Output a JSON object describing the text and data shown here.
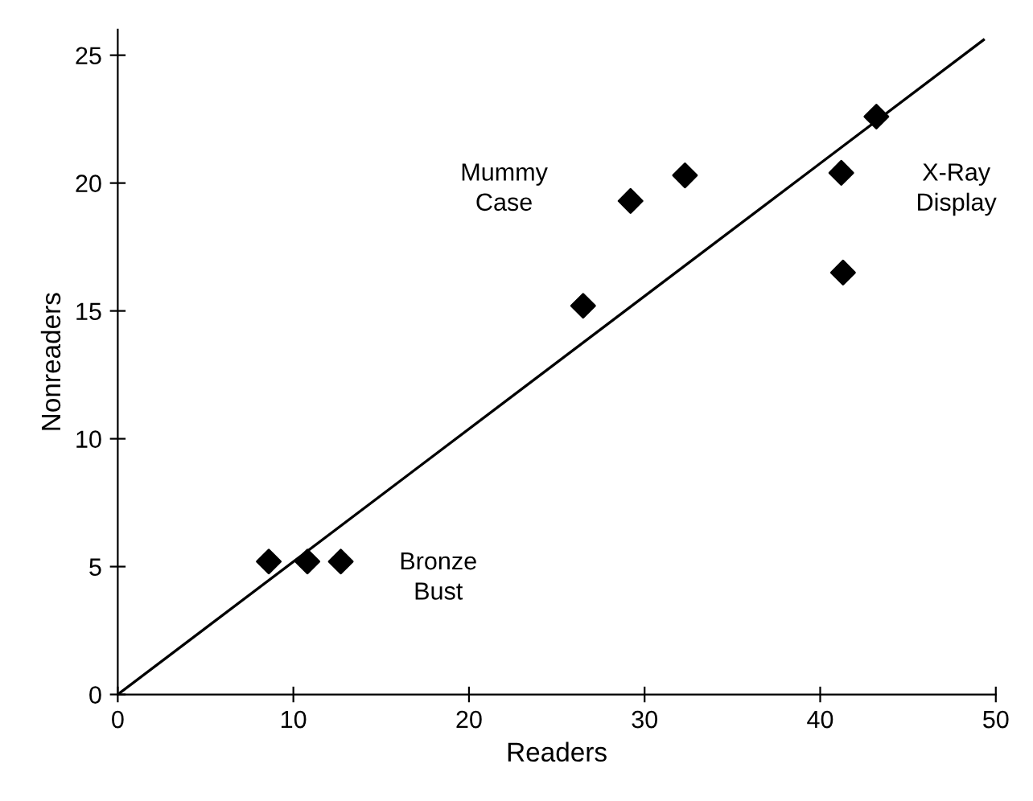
{
  "chart_data": {
    "type": "scatter",
    "xlabel": "Readers",
    "ylabel": "Nonreaders",
    "xlim": [
      0,
      50
    ],
    "ylim": [
      0,
      26
    ],
    "xticks": [
      0,
      10,
      20,
      30,
      40,
      50
    ],
    "yticks": [
      0,
      5,
      10,
      15,
      20,
      25
    ],
    "grid": false,
    "legend": false,
    "series": [
      {
        "color": "#000000",
        "marker": "diamond",
        "x": [
          8.6,
          10.8,
          12.7,
          26.5,
          29.2,
          32.3,
          41.2,
          41.3,
          43.2
        ],
        "values": [
          5.2,
          5.2,
          5.2,
          15.2,
          19.3,
          20.3,
          20.4,
          16.5,
          22.6
        ]
      },
      {
        "type": "line",
        "color": "#000000",
        "line_style": "solid",
        "x": [
          0,
          49.3
        ],
        "values": [
          0,
          25.6
        ]
      }
    ],
    "annotations": [
      "Mummy\nCase",
      "X-Ray\nDisplay",
      "Bronze\nBust"
    ]
  }
}
